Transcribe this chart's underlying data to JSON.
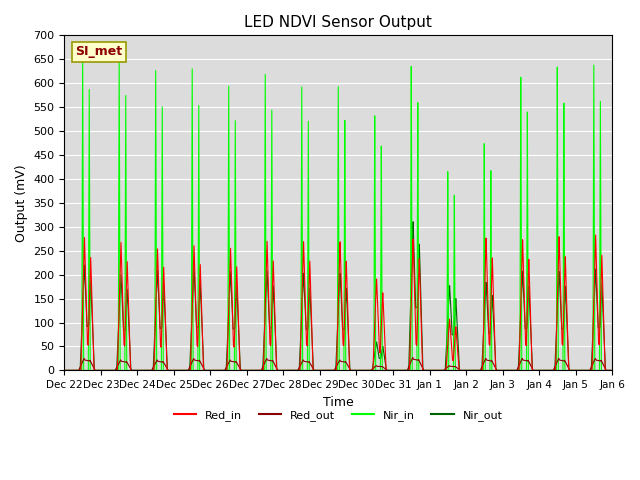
{
  "title": "LED NDVI Sensor Output",
  "xlabel": "Time",
  "ylabel": "Output (mV)",
  "ylim": [
    0,
    700
  ],
  "yticks": [
    0,
    50,
    100,
    150,
    200,
    250,
    300,
    350,
    400,
    450,
    500,
    550,
    600,
    650,
    700
  ],
  "x_tick_labels": [
    "Dec 22",
    "Dec 23",
    "Dec 24",
    "Dec 25",
    "Dec 26",
    "Dec 27",
    "Dec 28",
    "Dec 29",
    "Dec 30",
    "Dec 31",
    "Jan 1",
    "Jan 2",
    "Jan 3",
    "Jan 4",
    "Jan 5",
    "Jan 6"
  ],
  "watermark_text": "SI_met",
  "watermark_color": "#8B0000",
  "watermark_bg": "#FFFFCC",
  "bg_color": "#DCDCDC",
  "colors": {
    "Red_in": "#FF0000",
    "Red_out": "#8B0000",
    "Nir_in": "#00FF00",
    "Nir_out": "#006400"
  },
  "peaks": [
    {
      "nir_in": 670,
      "nir_out": 220,
      "red_in": 278,
      "red_out": 25
    },
    {
      "nir_in": 660,
      "nir_out": 200,
      "red_in": 268,
      "red_out": 22
    },
    {
      "nir_in": 637,
      "nir_out": 210,
      "red_in": 255,
      "red_out": 22
    },
    {
      "nir_in": 645,
      "nir_out": 215,
      "red_in": 262,
      "red_out": 25
    },
    {
      "nir_in": 612,
      "nir_out": 208,
      "red_in": 257,
      "red_out": 22
    },
    {
      "nir_in": 642,
      "nir_out": 210,
      "red_in": 272,
      "red_out": 25
    },
    {
      "nir_in": 619,
      "nir_out": 205,
      "red_in": 272,
      "red_out": 22
    },
    {
      "nir_in": 624,
      "nir_out": 205,
      "red_in": 272,
      "red_out": 22
    },
    {
      "nir_in": 556,
      "nir_out": 60,
      "red_in": 193,
      "red_out": 10
    },
    {
      "nir_in": 659,
      "nir_out": 313,
      "red_in": 277,
      "red_out": 27
    },
    {
      "nir_in": 428,
      "nir_out": 178,
      "red_in": 108,
      "red_out": 10
    },
    {
      "nir_in": 485,
      "nir_out": 185,
      "red_in": 278,
      "red_out": 25
    },
    {
      "nir_in": 623,
      "nir_out": 208,
      "red_in": 274,
      "red_out": 25
    },
    {
      "nir_in": 640,
      "nir_out": 207,
      "red_in": 280,
      "red_out": 25
    },
    {
      "nir_in": 640,
      "nir_out": 212,
      "red_in": 283,
      "red_out": 25
    }
  ]
}
